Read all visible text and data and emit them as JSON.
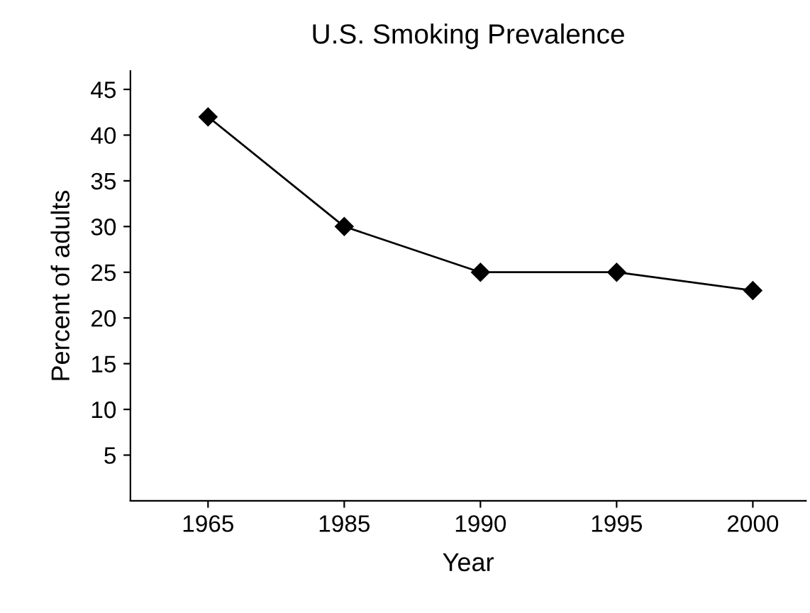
{
  "chart_data": {
    "type": "line",
    "title": "U.S. Smoking Prevalence",
    "xlabel": "Year",
    "ylabel": "Percent of adults",
    "categories": [
      "1965",
      "1985",
      "1990",
      "1995",
      "2000"
    ],
    "series": [
      {
        "color": "#000000",
        "values": [
          42,
          30,
          25,
          25,
          23
        ]
      }
    ],
    "ylim": [
      0,
      47
    ],
    "yticks": [
      5,
      10,
      15,
      20,
      25,
      30,
      35,
      40,
      45
    ],
    "marker": "diamond",
    "line_style": "solid",
    "grid": false,
    "legend": false
  }
}
